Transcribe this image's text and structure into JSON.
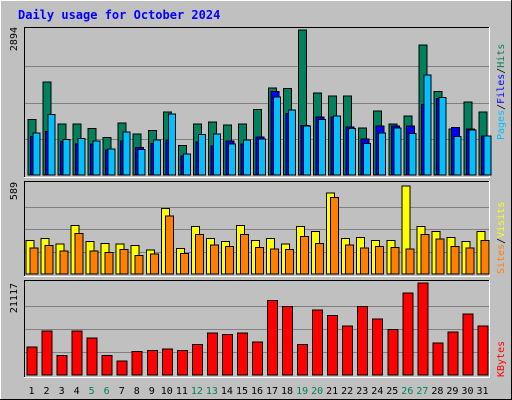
{
  "title": "Daily usage for October 2024",
  "colors": {
    "background": "#c0c0c0",
    "title": "#0000ff",
    "hits": "#00805c",
    "files": "#0000ff",
    "pages": "#00c0ff",
    "visits": "#ffff00",
    "sites": "#ff8000",
    "kbytes": "#ff0000",
    "weekend_label": "#00805c",
    "weekday_label": "#000000",
    "gridline": "#808080"
  },
  "chart_data": [
    {
      "type": "bar",
      "panel": "hits-files-pages",
      "y_max_label": "2894",
      "ylim": [
        0,
        2894
      ],
      "legend": {
        "hits": "Hits",
        "files": "Files",
        "pages": "Pages",
        "sep": "/"
      },
      "categories": [
        "1",
        "2",
        "3",
        "4",
        "5",
        "6",
        "7",
        "8",
        "9",
        "10",
        "11",
        "12",
        "13",
        "14",
        "15",
        "16",
        "17",
        "18",
        "19",
        "20",
        "21",
        "22",
        "23",
        "24",
        "25",
        "26",
        "27",
        "28",
        "29",
        "30",
        "31"
      ],
      "series": [
        {
          "name": "Hits",
          "key": "hits",
          "values": [
            1110,
            1853,
            1022,
            1022,
            928,
            745,
            1041,
            815,
            888,
            1257,
            585,
            1022,
            1060,
            999,
            1022,
            1311,
            1737,
            1724,
            2894,
            1641,
            1581,
            1581,
            943,
            1276,
            1022,
            1181,
            2590,
            1663,
            915,
            1460,
            1257
          ]
        },
        {
          "name": "Files",
          "key": "files",
          "values": [
            767,
            870,
            670,
            620,
            620,
            500,
            680,
            550,
            625,
            700,
            378,
            660,
            580,
            680,
            620,
            760,
            1670,
            1230,
            990,
            1160,
            1160,
            960,
            720,
            980,
            980,
            980,
            1410,
            1530,
            950,
            920,
            780
          ]
        },
        {
          "name": "Pages",
          "key": "pages",
          "values": [
            840,
            1210,
            705,
            728,
            680,
            520,
            860,
            510,
            700,
            1220,
            420,
            805,
            820,
            617,
            700,
            720,
            1560,
            1300,
            980,
            1110,
            1180,
            930,
            630,
            840,
            940,
            830,
            2000,
            1550,
            770,
            900,
            780
          ]
        }
      ]
    },
    {
      "type": "bar",
      "panel": "visits-sites",
      "y_max_label": "589",
      "ylim": [
        0,
        589
      ],
      "legend": {
        "visits": "Visits",
        "sites": "Sites",
        "sep": "/"
      },
      "categories": [
        "1",
        "2",
        "3",
        "4",
        "5",
        "6",
        "7",
        "8",
        "9",
        "10",
        "11",
        "12",
        "13",
        "14",
        "15",
        "16",
        "17",
        "18",
        "19",
        "20",
        "21",
        "22",
        "23",
        "24",
        "25",
        "26",
        "27",
        "28",
        "29",
        "30",
        "31"
      ],
      "series": [
        {
          "name": "Visits",
          "key": "visits",
          "values": [
            219,
            232,
            196,
            316,
            212,
            198,
            196,
            185,
            158,
            430,
            167,
            310,
            232,
            212,
            316,
            219,
            232,
            196,
            310,
            277,
            530,
            232,
            238,
            219,
            219,
            575,
            310,
            277,
            238,
            212,
            277
          ]
        },
        {
          "name": "Sites",
          "key": "sites",
          "values": [
            170,
            185,
            150,
            265,
            150,
            140,
            160,
            120,
            130,
            380,
            135,
            260,
            190,
            180,
            260,
            175,
            165,
            160,
            245,
            200,
            500,
            190,
            170,
            180,
            175,
            165,
            260,
            230,
            180,
            170,
            220
          ]
        }
      ]
    },
    {
      "type": "bar",
      "panel": "kbytes",
      "y_max_label": "21117",
      "ylim": [
        0,
        21117
      ],
      "legend": {
        "kbytes": "KBytes"
      },
      "categories": [
        "1",
        "2",
        "3",
        "4",
        "5",
        "6",
        "7",
        "8",
        "9",
        "10",
        "11",
        "12",
        "13",
        "14",
        "15",
        "16",
        "17",
        "18",
        "19",
        "20",
        "21",
        "22",
        "23",
        "24",
        "25",
        "26",
        "27",
        "28",
        "29",
        "30",
        "31"
      ],
      "series": [
        {
          "name": "KBytes",
          "key": "kbytes",
          "values": [
            6390,
            10137,
            4440,
            10137,
            8540,
            4440,
            3200,
            5380,
            5590,
            5990,
            5590,
            7000,
            9670,
            9270,
            9670,
            7590,
            17080,
            15680,
            7000,
            14950,
            13620,
            11240,
            15680,
            12800,
            10500,
            18830,
            21117,
            7290,
            9900,
            14020,
            11240
          ]
        }
      ]
    }
  ],
  "x_axis": {
    "labels": [
      "1",
      "2",
      "3",
      "4",
      "5",
      "6",
      "7",
      "8",
      "9",
      "10",
      "11",
      "12",
      "13",
      "14",
      "15",
      "16",
      "17",
      "18",
      "19",
      "20",
      "21",
      "22",
      "23",
      "24",
      "25",
      "26",
      "27",
      "28",
      "29",
      "30",
      "31"
    ],
    "weekend": [
      false,
      false,
      false,
      false,
      true,
      true,
      false,
      false,
      false,
      false,
      false,
      true,
      true,
      false,
      false,
      false,
      false,
      false,
      true,
      true,
      false,
      false,
      false,
      false,
      false,
      true,
      true,
      false,
      false,
      false,
      false
    ]
  }
}
